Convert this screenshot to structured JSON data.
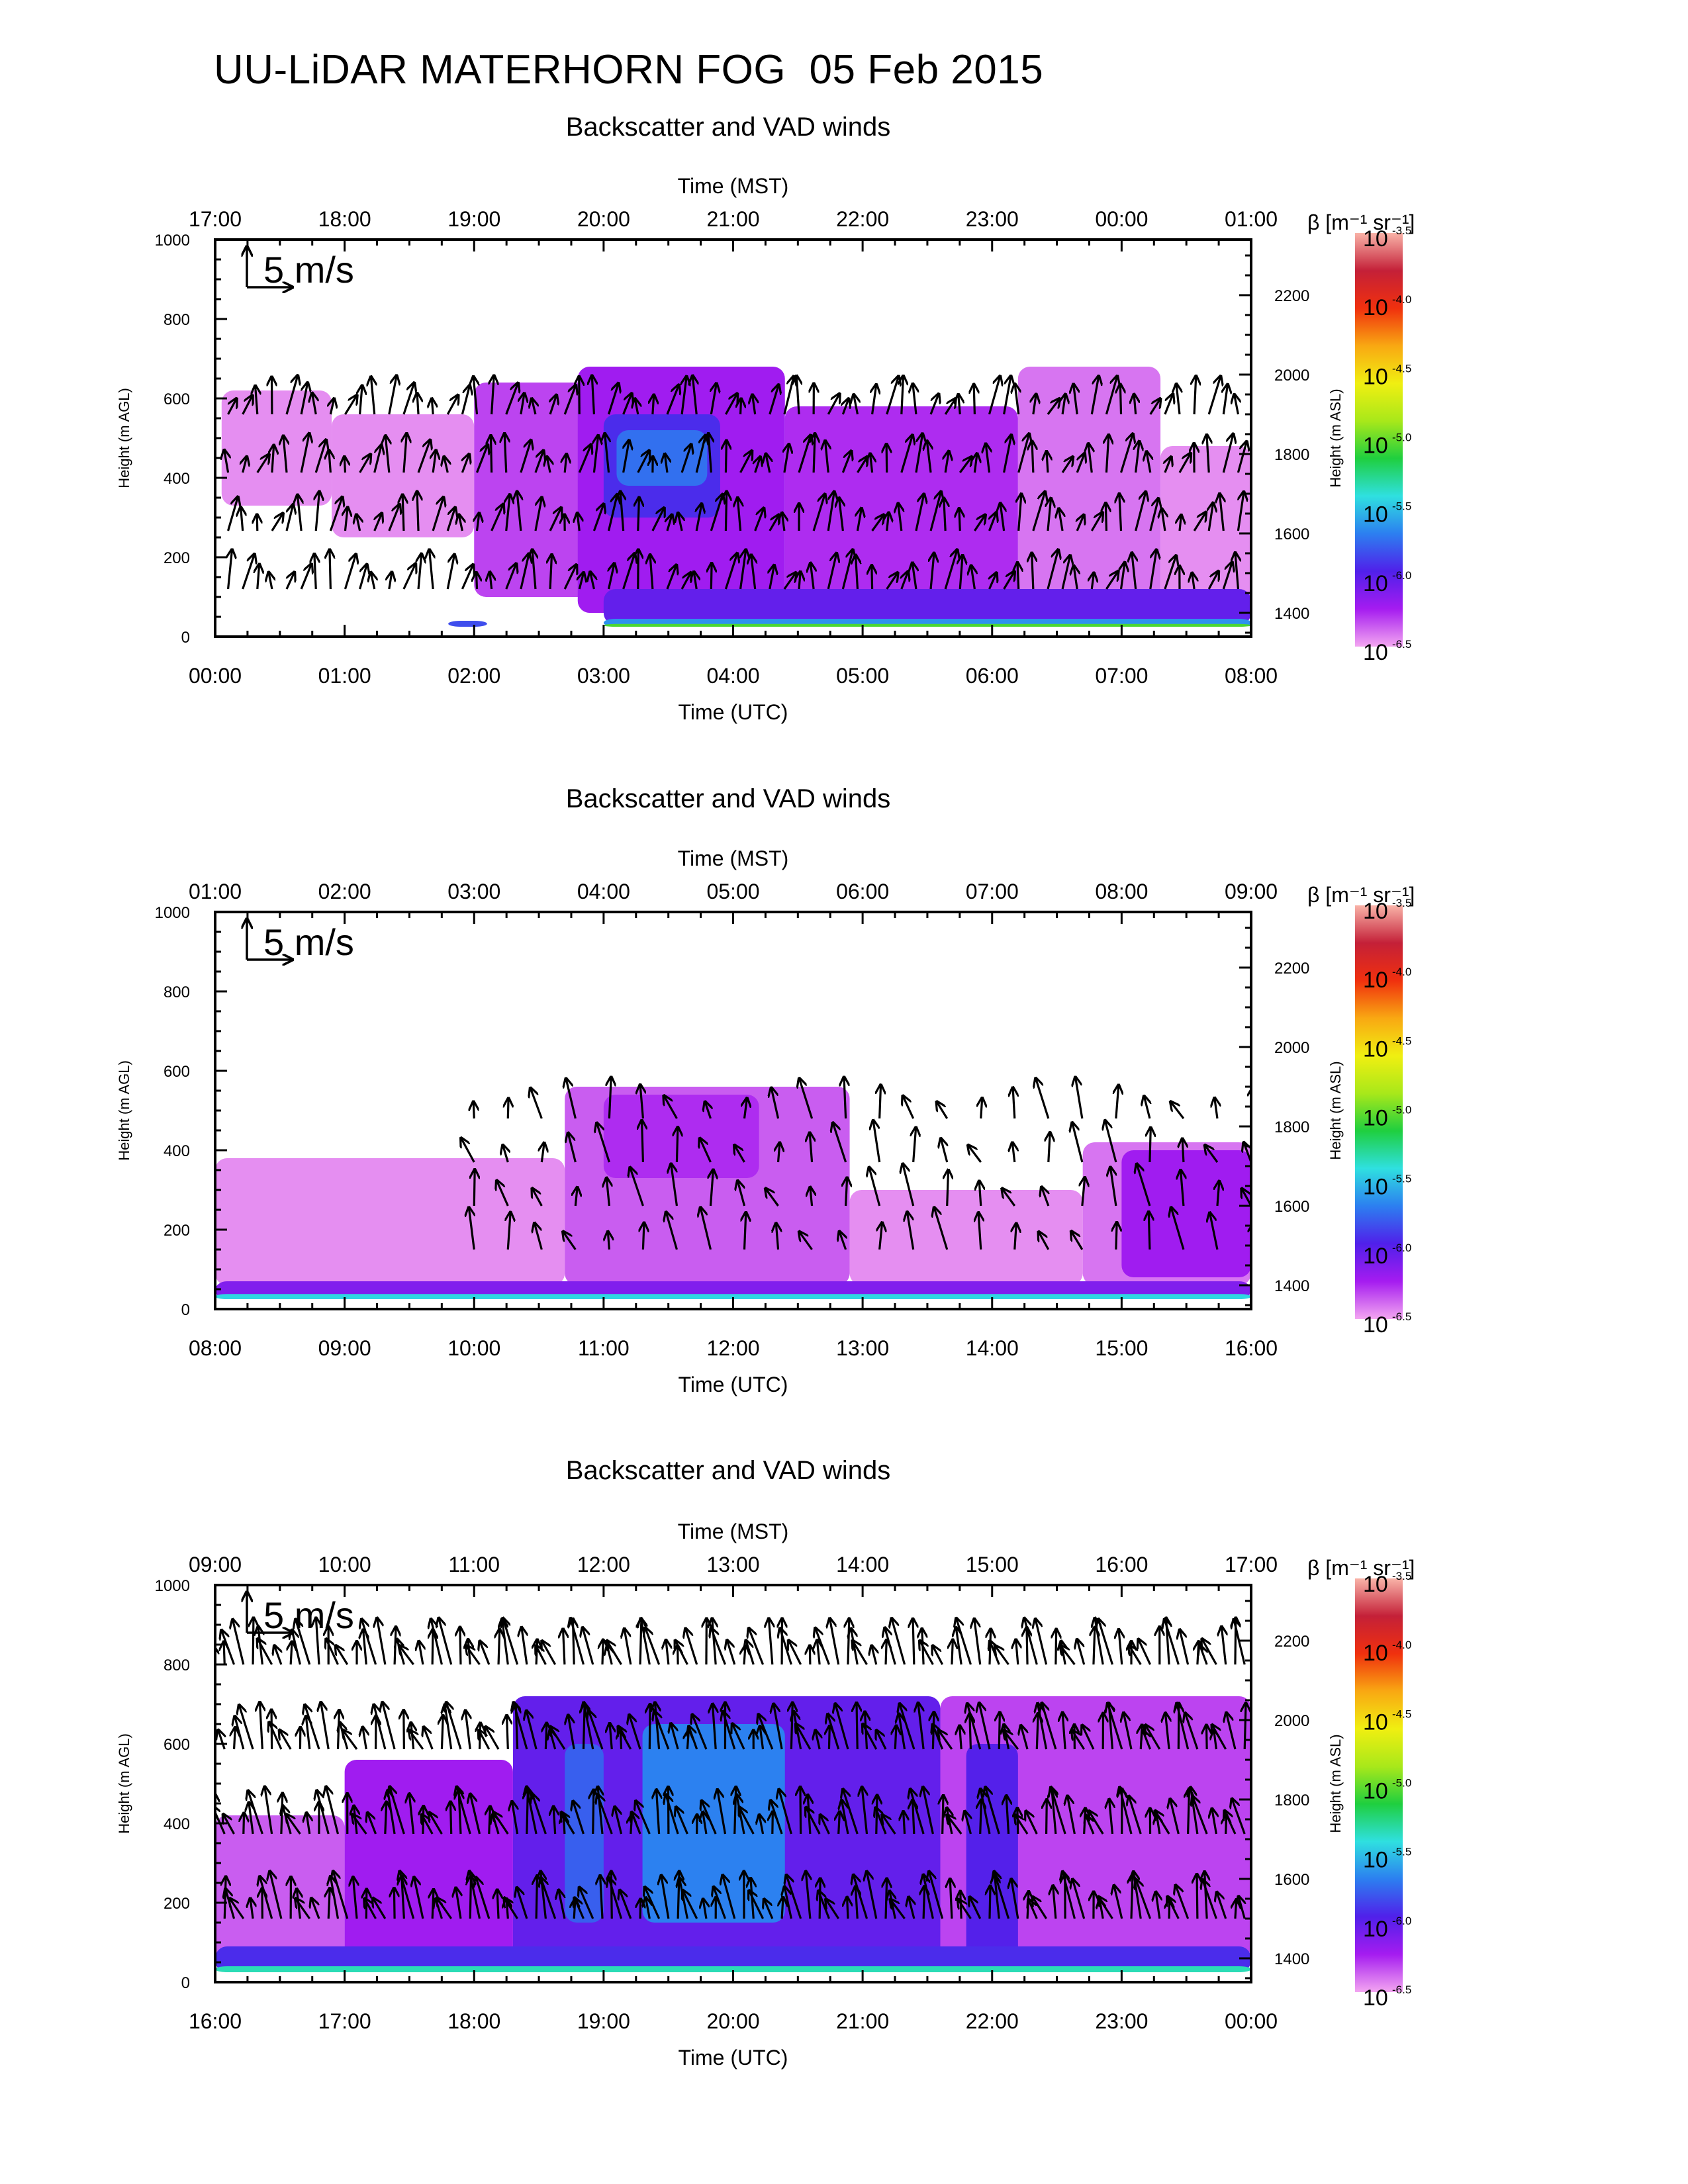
{
  "title": "UU-LiDAR MATERHORN FOG  05 Feb 2015",
  "colors": {
    "background": "#ffffff",
    "axes": "#000000",
    "arrow": "#000000",
    "colorbar_stops": [
      "#f3a6f1",
      "#a51cf0",
      "#5020ea",
      "#2c7ff0",
      "#2fe0e0",
      "#1fcf3f",
      "#a8e81a",
      "#f0ef11",
      "#f9a812",
      "#f0300e",
      "#c42038",
      "#f9b3a8"
    ]
  },
  "vector_key_label": "5 m/s",
  "chart_data": [
    {
      "type": "heatmap",
      "title": "Backscatter and VAD winds",
      "xlabel_bottom": "Time (UTC)",
      "xlabel_top": "Time (MST)",
      "ylabel_left": "Height (m AGL)",
      "ylabel_right": "Height (m ASL)",
      "x_bottom_ticks": [
        "00:00",
        "01:00",
        "02:00",
        "03:00",
        "04:00",
        "05:00",
        "06:00",
        "07:00",
        "08:00"
      ],
      "x_top_ticks": [
        "17:00",
        "18:00",
        "19:00",
        "20:00",
        "21:00",
        "22:00",
        "23:00",
        "00:00",
        "01:00"
      ],
      "y_left_ticks": [
        "0",
        "200",
        "400",
        "600",
        "800",
        "1000"
      ],
      "y_right_ticks": [
        "1400",
        "1600",
        "1800",
        "2000",
        "2200"
      ],
      "xlim_hours": [
        0,
        8
      ],
      "ylim": [
        0,
        1000
      ],
      "colorbar": {
        "label": "β [m⁻¹ sr⁻¹]",
        "tick_exponents": [
          "-3.5",
          "-4.0",
          "-4.5",
          "-5.0",
          "-5.5",
          "-6.0",
          "-6.5"
        ],
        "range_log10": [
          -6.6,
          -3.5
        ]
      },
      "layers": [
        {
          "t0": 0.05,
          "t1": 0.9,
          "z0": 330,
          "z1": 620,
          "level": -6.55
        },
        {
          "t0": 0.9,
          "t1": 2.0,
          "z0": 250,
          "z1": 560,
          "level": -6.55
        },
        {
          "t0": 2.0,
          "t1": 3.0,
          "z0": 100,
          "z1": 640,
          "level": -6.4
        },
        {
          "t0": 2.8,
          "t1": 4.4,
          "z0": 60,
          "z1": 680,
          "level": -6.3
        },
        {
          "t0": 3.0,
          "t1": 3.9,
          "z0": 300,
          "z1": 560,
          "level": -6.0
        },
        {
          "t0": 3.1,
          "t1": 3.8,
          "z0": 380,
          "z1": 520,
          "level": -5.8
        },
        {
          "t0": 4.4,
          "t1": 6.2,
          "z0": 60,
          "z1": 580,
          "level": -6.35
        },
        {
          "t0": 6.2,
          "t1": 7.3,
          "z0": 60,
          "z1": 680,
          "level": -6.5
        },
        {
          "t0": 7.3,
          "t1": 8.0,
          "z0": 60,
          "z1": 480,
          "level": -6.55
        },
        {
          "t0": 3.0,
          "t1": 8.0,
          "z0": 30,
          "z1": 120,
          "level": -6.1
        },
        {
          "t0": 3.0,
          "t1": 8.0,
          "z0": 25,
          "z1": 45,
          "level": -5.7
        },
        {
          "t0": 3.0,
          "t1": 8.0,
          "z0": 25,
          "z1": 32,
          "level": -5.1
        },
        {
          "t0": 1.8,
          "t1": 2.1,
          "z0": 25,
          "z1": 40,
          "level": -5.9
        }
      ],
      "wind_arrows": {
        "t_start": 0.1,
        "t_end": 7.9,
        "n": 70,
        "z_min": 120,
        "z_max": 560,
        "u": 0.3,
        "v": 3.0
      }
    },
    {
      "type": "heatmap",
      "title": "Backscatter and VAD winds",
      "xlabel_bottom": "Time (UTC)",
      "xlabel_top": "Time (MST)",
      "ylabel_left": "Height (m AGL)",
      "ylabel_right": "Height (m ASL)",
      "x_bottom_ticks": [
        "08:00",
        "09:00",
        "10:00",
        "11:00",
        "12:00",
        "13:00",
        "14:00",
        "15:00",
        "16:00"
      ],
      "x_top_ticks": [
        "01:00",
        "02:00",
        "03:00",
        "04:00",
        "05:00",
        "06:00",
        "07:00",
        "08:00",
        "09:00"
      ],
      "y_left_ticks": [
        "0",
        "200",
        "400",
        "600",
        "800",
        "1000"
      ],
      "y_right_ticks": [
        "1400",
        "1600",
        "1800",
        "2000",
        "2200"
      ],
      "xlim_hours": [
        8,
        16
      ],
      "ylim": [
        0,
        1000
      ],
      "colorbar": {
        "label": "β [m⁻¹ sr⁻¹]",
        "tick_exponents": [
          "-3.5",
          "-4.0",
          "-4.5",
          "-5.0",
          "-5.5",
          "-6.0",
          "-6.5"
        ],
        "range_log10": [
          -6.6,
          -3.5
        ]
      },
      "layers": [
        {
          "t0": 8.0,
          "t1": 10.7,
          "z0": 60,
          "z1": 380,
          "level": -6.55
        },
        {
          "t0": 10.7,
          "t1": 12.9,
          "z0": 60,
          "z1": 560,
          "level": -6.45
        },
        {
          "t0": 11.0,
          "t1": 12.2,
          "z0": 330,
          "z1": 540,
          "level": -6.35
        },
        {
          "t0": 12.9,
          "t1": 14.7,
          "z0": 60,
          "z1": 300,
          "level": -6.55
        },
        {
          "t0": 14.7,
          "t1": 16.0,
          "z0": 60,
          "z1": 420,
          "level": -6.5
        },
        {
          "t0": 15.0,
          "t1": 16.0,
          "z0": 80,
          "z1": 400,
          "level": -6.3
        },
        {
          "t0": 8.0,
          "t1": 16.0,
          "z0": 25,
          "z1": 70,
          "level": -6.2
        },
        {
          "t0": 8.0,
          "t1": 16.0,
          "z0": 25,
          "z1": 38,
          "level": -5.5
        }
      ],
      "wind_arrows": {
        "t_start": 10.0,
        "t_end": 16.0,
        "n": 24,
        "z_min": 150,
        "z_max": 480,
        "u": -0.4,
        "v": 3.2
      }
    },
    {
      "type": "heatmap",
      "title": "Backscatter and VAD winds",
      "xlabel_bottom": "Time (UTC)",
      "xlabel_top": "Time (MST)",
      "ylabel_left": "Height (m AGL)",
      "ylabel_right": "Height (m ASL)",
      "x_bottom_ticks": [
        "16:00",
        "17:00",
        "18:00",
        "19:00",
        "20:00",
        "21:00",
        "22:00",
        "23:00",
        "00:00"
      ],
      "x_top_ticks": [
        "09:00",
        "10:00",
        "11:00",
        "12:00",
        "13:00",
        "14:00",
        "15:00",
        "16:00",
        "17:00"
      ],
      "y_left_ticks": [
        "0",
        "200",
        "400",
        "600",
        "800",
        "1000"
      ],
      "y_right_ticks": [
        "1400",
        "1600",
        "1800",
        "2000",
        "2200"
      ],
      "xlim_hours": [
        16,
        24
      ],
      "ylim": [
        0,
        1000
      ],
      "colorbar": {
        "label": "β [m⁻¹ sr⁻¹]",
        "tick_exponents": [
          "-3.5",
          "-4.0",
          "-4.5",
          "-5.0",
          "-5.5",
          "-6.0",
          "-6.5"
        ],
        "range_log10": [
          -6.6,
          -3.5
        ]
      },
      "layers": [
        {
          "t0": 16.0,
          "t1": 17.0,
          "z0": 30,
          "z1": 420,
          "level": -6.45
        },
        {
          "t0": 17.0,
          "t1": 18.3,
          "z0": 30,
          "z1": 560,
          "level": -6.3
        },
        {
          "t0": 18.3,
          "t1": 21.6,
          "z0": 30,
          "z1": 720,
          "level": -6.1
        },
        {
          "t0": 19.3,
          "t1": 20.4,
          "z0": 150,
          "z1": 650,
          "level": -5.75
        },
        {
          "t0": 18.7,
          "t1": 19.0,
          "z0": 150,
          "z1": 600,
          "level": -5.85
        },
        {
          "t0": 21.6,
          "t1": 24.0,
          "z0": 60,
          "z1": 720,
          "level": -6.4
        },
        {
          "t0": 21.8,
          "t1": 22.2,
          "z0": 60,
          "z1": 600,
          "level": -6.05
        },
        {
          "t0": 16.0,
          "t1": 24.0,
          "z0": 25,
          "z1": 90,
          "level": -6.0
        },
        {
          "t0": 16.0,
          "t1": 24.0,
          "z0": 25,
          "z1": 40,
          "level": -5.4
        }
      ],
      "wind_arrows": {
        "t_start": 16.0,
        "t_end": 23.95,
        "n": 110,
        "z_min": 160,
        "z_max": 800,
        "u": -0.5,
        "v": 3.6
      }
    }
  ]
}
